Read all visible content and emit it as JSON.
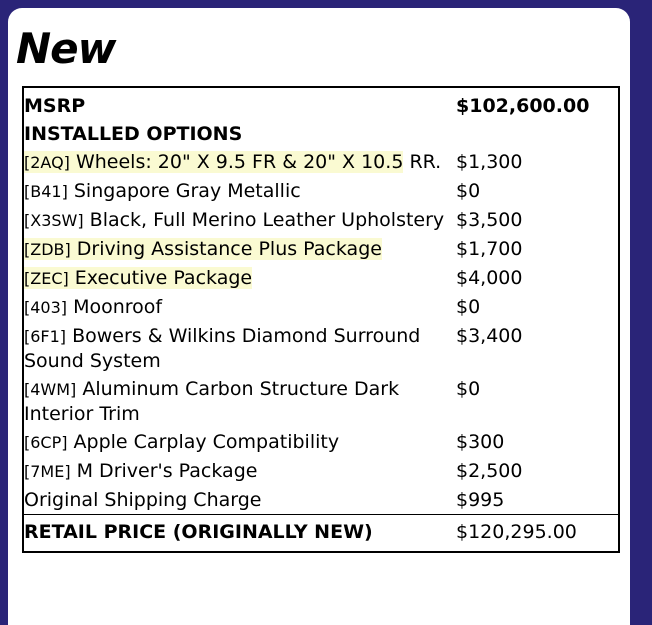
{
  "page": {
    "title": "New",
    "frame_color": "#2a2478",
    "background_color": "#ffffff",
    "highlight_color": "#fafad2"
  },
  "pricing_table": {
    "msrp": {
      "label": "MSRP",
      "value": "$102,600.00"
    },
    "installed_options_header": "INSTALLED OPTIONS",
    "options": [
      {
        "code": "[2AQ]",
        "name": "Wheels: 20\" X 9.5 FR & 20\" X 10.5",
        "name_suffix": " RR.",
        "price": "$1,300",
        "highlighted": true
      },
      {
        "code": "[B41]",
        "name": "Singapore Gray Metallic",
        "name_suffix": "",
        "price": "$0",
        "highlighted": false
      },
      {
        "code": "[X3SW]",
        "name": "Black, Full Merino Leather Upholstery",
        "name_suffix": "",
        "price": "$3,500",
        "highlighted": false
      },
      {
        "code": "[ZDB]",
        "name": "Driving Assistance Plus Package",
        "name_suffix": "",
        "price": "$1,700",
        "highlighted": true
      },
      {
        "code": "[ZEC]",
        "name": "Executive Package",
        "name_suffix": "",
        "price": "$4,000",
        "highlighted": true
      },
      {
        "code": "[403]",
        "name": "Moonroof",
        "name_suffix": "",
        "price": "$0",
        "highlighted": false
      },
      {
        "code": "[6F1]",
        "name": "Bowers & Wilkins Diamond Surround Sound System",
        "name_suffix": "",
        "price": "$3,400",
        "highlighted": false
      },
      {
        "code": "[4WM]",
        "name": "Aluminum Carbon Structure Dark Interior Trim",
        "name_suffix": "",
        "price": "$0",
        "highlighted": false
      },
      {
        "code": "[6CP]",
        "name": "Apple Carplay Compatibility",
        "name_suffix": "",
        "price": "$300",
        "highlighted": false
      },
      {
        "code": "[7ME]",
        "name": "M Driver's Package",
        "name_suffix": "",
        "price": "$2,500",
        "highlighted": false
      },
      {
        "code": "",
        "name": "Original Shipping Charge",
        "name_suffix": "",
        "price": "$995",
        "highlighted": false
      }
    ],
    "retail_price": {
      "label": "RETAIL PRICE (ORIGINALLY NEW)",
      "value": "$120,295.00"
    }
  }
}
